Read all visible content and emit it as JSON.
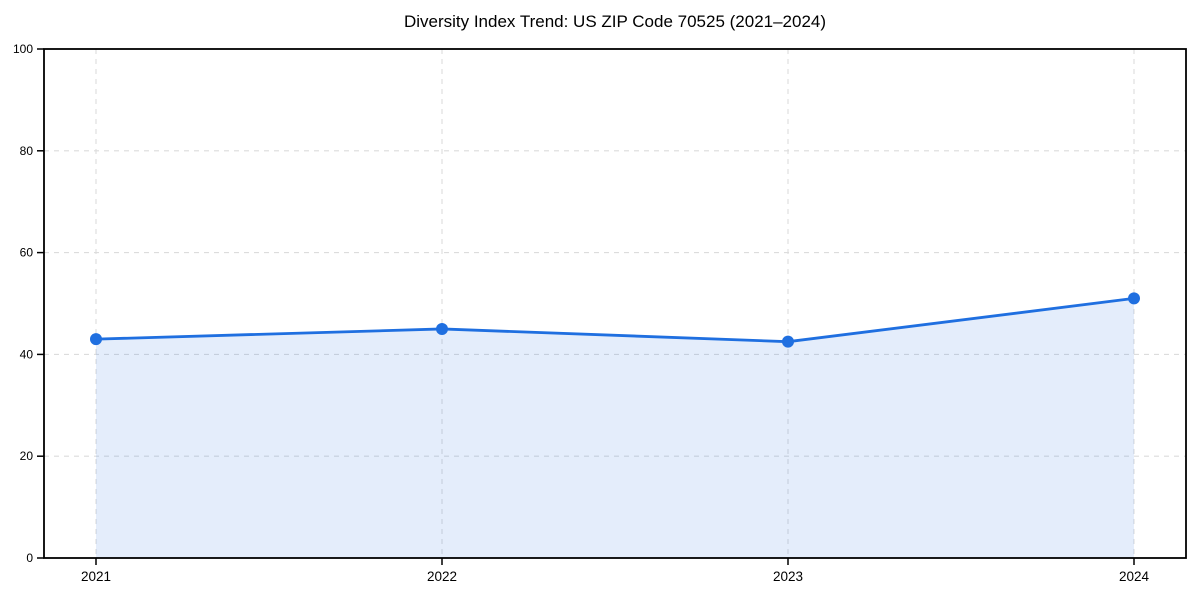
{
  "chart_data": {
    "type": "line",
    "title": "Diversity Index Trend: US ZIP Code 70525 (2021–2024)",
    "categories": [
      "2021",
      "2022",
      "2023",
      "2024"
    ],
    "series": [
      {
        "name": "Diversity Index",
        "values": [
          43,
          45,
          42.5,
          51
        ]
      }
    ],
    "xlabel": "",
    "ylabel": "",
    "ylim": [
      0,
      100
    ],
    "yticks": [
      0,
      20,
      40,
      60,
      80,
      100
    ],
    "grid": "both, dashed",
    "legend": "none",
    "style": {
      "line_color": "#1f6fe0",
      "marker_color": "#1f6fe0",
      "area_color": "#1f6fe0",
      "area_opacity": 0.12,
      "grid_color": "#dcdcdc",
      "spine_color": "#000000",
      "text_color": "#000000",
      "background": "#ffffff"
    }
  }
}
